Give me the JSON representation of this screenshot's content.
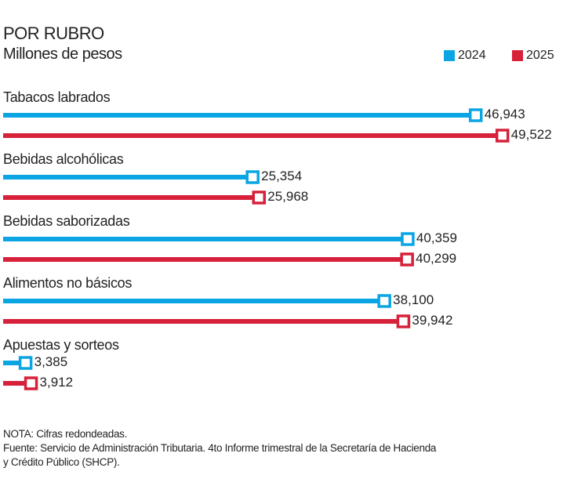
{
  "title": "POR RUBRO",
  "subtitle": "Millones de pesos",
  "colors": {
    "2024": "#0aa5e2",
    "2025": "#d7213a"
  },
  "chart_data": {
    "type": "bar",
    "orientation": "horizontal",
    "title": "POR RUBRO",
    "subtitle": "Millones de pesos",
    "categories": [
      "Tabacos labrados",
      "Bebidas alcohólicas",
      "Bebidas saborizadas",
      "Alimentos no básicos",
      "Apuestas y sorteos"
    ],
    "series": [
      {
        "name": "2024",
        "values": [
          46943,
          25354,
          40359,
          38100,
          3385
        ],
        "labels": [
          "46,943",
          "25,354",
          "40,359",
          "38,100",
          "3,385"
        ]
      },
      {
        "name": "2025",
        "values": [
          49522,
          25968,
          40299,
          39942,
          3912
        ],
        "labels": [
          "49,522",
          "25,968",
          "40,299",
          "39,942",
          "3,912"
        ]
      }
    ],
    "legend": "top-right",
    "grid": false
  },
  "notes": [
    "NOTA: Cifras redondeadas.",
    "Fuente: Servicio de Administración Tributaria. 4to Informe trimestral de la Secretaría de Hacienda",
    "y Crédito Público (SHCP)."
  ]
}
